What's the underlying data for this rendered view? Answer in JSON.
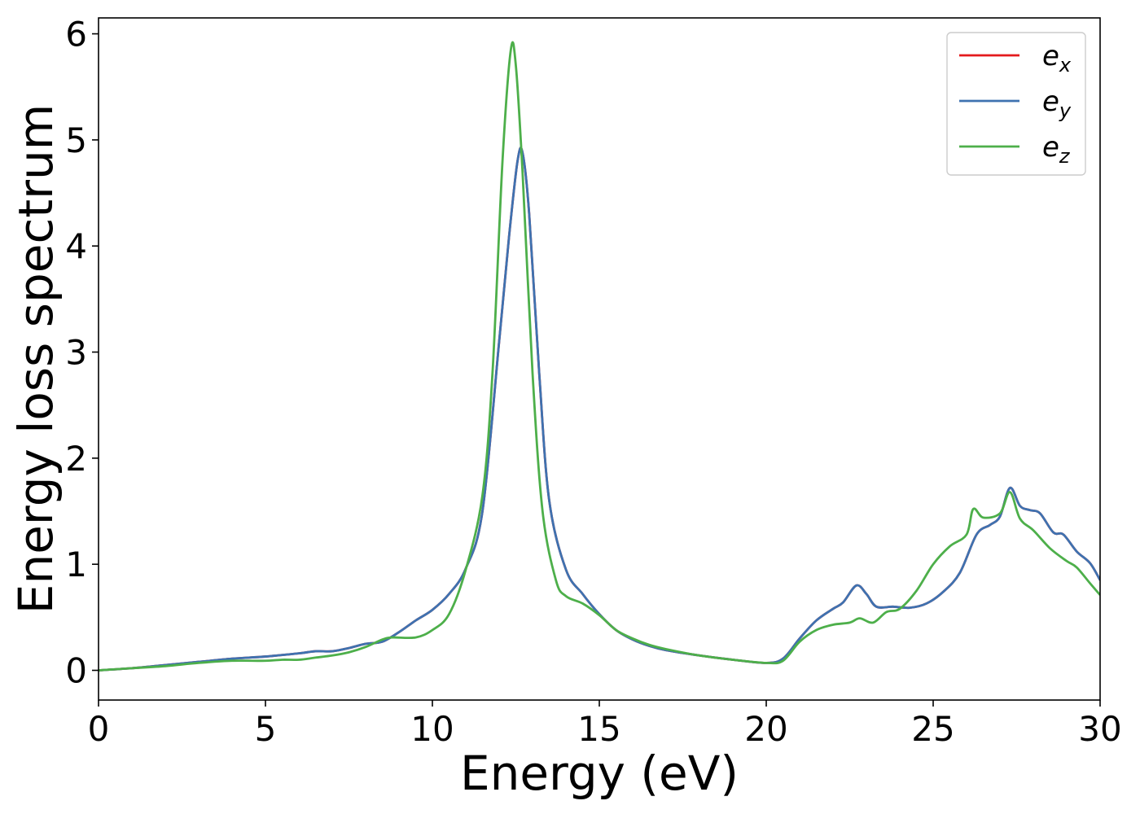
{
  "chart_data": {
    "type": "line",
    "title": "",
    "xlabel": "Energy (eV)",
    "ylabel": "Energy loss spectrum",
    "xlim": [
      0,
      30
    ],
    "ylim": [
      -0.28,
      6.15
    ],
    "xticks": [
      0,
      5,
      10,
      15,
      20,
      25,
      30
    ],
    "xtick_labels": [
      "0",
      "5",
      "10",
      "15",
      "20",
      "25",
      "30"
    ],
    "yticks": [
      0,
      1,
      2,
      3,
      4,
      5,
      6
    ],
    "ytick_labels": [
      "0",
      "1",
      "2",
      "3",
      "4",
      "5",
      "6"
    ],
    "grid": false,
    "legend": {
      "placement": "top-right",
      "entries": [
        {
          "base": "e",
          "sub": "x",
          "color": "#e41a1c"
        },
        {
          "base": "e",
          "sub": "y",
          "color": "#3e72b0"
        },
        {
          "base": "e",
          "sub": "z",
          "color": "#4daf4a"
        }
      ]
    },
    "series": [
      {
        "name": "e_x",
        "color": "#e41a1c",
        "x": [
          0,
          1,
          2,
          3,
          4,
          5,
          6,
          6.5,
          7,
          7.5,
          8,
          8.5,
          9,
          9.5,
          10,
          10.5,
          11,
          11.5,
          12,
          12.3,
          12.55,
          12.7,
          12.9,
          13.2,
          13.5,
          14,
          14.5,
          15,
          15.5,
          16,
          16.5,
          17,
          18,
          19,
          20,
          20.5,
          21,
          21.5,
          22,
          22.3,
          22.7,
          23,
          23.3,
          23.8,
          24.3,
          24.8,
          25.3,
          25.8,
          26.3,
          26.7,
          27,
          27.3,
          27.6,
          27.9,
          28.2,
          28.6,
          28.9,
          29.3,
          29.7,
          30
        ],
        "y": [
          0.0,
          0.02,
          0.05,
          0.08,
          0.11,
          0.13,
          0.16,
          0.18,
          0.18,
          0.21,
          0.25,
          0.27,
          0.36,
          0.47,
          0.57,
          0.72,
          0.96,
          1.5,
          3.1,
          4.1,
          4.8,
          4.88,
          4.3,
          2.8,
          1.6,
          0.95,
          0.72,
          0.53,
          0.38,
          0.29,
          0.23,
          0.19,
          0.14,
          0.1,
          0.07,
          0.11,
          0.3,
          0.47,
          0.58,
          0.64,
          0.8,
          0.72,
          0.6,
          0.6,
          0.59,
          0.63,
          0.74,
          0.92,
          1.28,
          1.37,
          1.45,
          1.72,
          1.55,
          1.51,
          1.48,
          1.3,
          1.28,
          1.12,
          1.01,
          0.85
        ]
      },
      {
        "name": "e_y",
        "color": "#3e72b0",
        "x": [
          0,
          1,
          2,
          3,
          4,
          5,
          6,
          6.5,
          7,
          7.5,
          8,
          8.5,
          9,
          9.5,
          10,
          10.5,
          11,
          11.5,
          12,
          12.3,
          12.55,
          12.7,
          12.9,
          13.2,
          13.5,
          14,
          14.5,
          15,
          15.5,
          16,
          16.5,
          17,
          18,
          19,
          20,
          20.5,
          21,
          21.5,
          22,
          22.3,
          22.7,
          23,
          23.3,
          23.8,
          24.3,
          24.8,
          25.3,
          25.8,
          26.3,
          26.7,
          27,
          27.3,
          27.6,
          27.9,
          28.2,
          28.6,
          28.9,
          29.3,
          29.7,
          30
        ],
        "y": [
          0.0,
          0.02,
          0.05,
          0.08,
          0.11,
          0.13,
          0.16,
          0.18,
          0.18,
          0.21,
          0.25,
          0.27,
          0.36,
          0.47,
          0.57,
          0.72,
          0.96,
          1.5,
          3.1,
          4.1,
          4.8,
          4.88,
          4.3,
          2.8,
          1.6,
          0.95,
          0.72,
          0.53,
          0.38,
          0.29,
          0.23,
          0.19,
          0.14,
          0.1,
          0.07,
          0.11,
          0.3,
          0.47,
          0.58,
          0.64,
          0.8,
          0.72,
          0.6,
          0.6,
          0.59,
          0.63,
          0.74,
          0.92,
          1.28,
          1.37,
          1.45,
          1.72,
          1.55,
          1.51,
          1.48,
          1.3,
          1.28,
          1.12,
          1.01,
          0.85
        ]
      },
      {
        "name": "e_z",
        "color": "#4daf4a",
        "x": [
          0,
          1,
          2,
          3,
          4,
          5,
          5.5,
          6,
          6.5,
          7,
          7.5,
          8,
          8.5,
          8.8,
          9.5,
          10,
          10.5,
          11,
          11.5,
          11.8,
          12.1,
          12.35,
          12.5,
          12.7,
          13,
          13.3,
          13.7,
          14,
          14.5,
          15,
          15.5,
          16,
          16.5,
          17,
          18,
          19,
          20,
          20.5,
          21,
          21.5,
          22,
          22.5,
          22.8,
          23.2,
          23.6,
          24,
          24.5,
          25,
          25.5,
          26,
          26.2,
          26.5,
          27,
          27.3,
          27.6,
          28,
          28.5,
          29,
          29.3,
          29.7,
          30
        ],
        "y": [
          0.0,
          0.02,
          0.04,
          0.07,
          0.09,
          0.09,
          0.1,
          0.1,
          0.12,
          0.14,
          0.17,
          0.22,
          0.29,
          0.31,
          0.31,
          0.38,
          0.53,
          0.95,
          1.65,
          2.8,
          4.8,
          5.85,
          5.7,
          4.7,
          2.8,
          1.5,
          0.85,
          0.7,
          0.63,
          0.52,
          0.38,
          0.3,
          0.24,
          0.2,
          0.14,
          0.1,
          0.07,
          0.09,
          0.27,
          0.38,
          0.43,
          0.45,
          0.49,
          0.45,
          0.55,
          0.58,
          0.75,
          1.0,
          1.17,
          1.28,
          1.52,
          1.44,
          1.48,
          1.68,
          1.43,
          1.32,
          1.15,
          1.03,
          0.97,
          0.82,
          0.71
        ]
      }
    ]
  }
}
